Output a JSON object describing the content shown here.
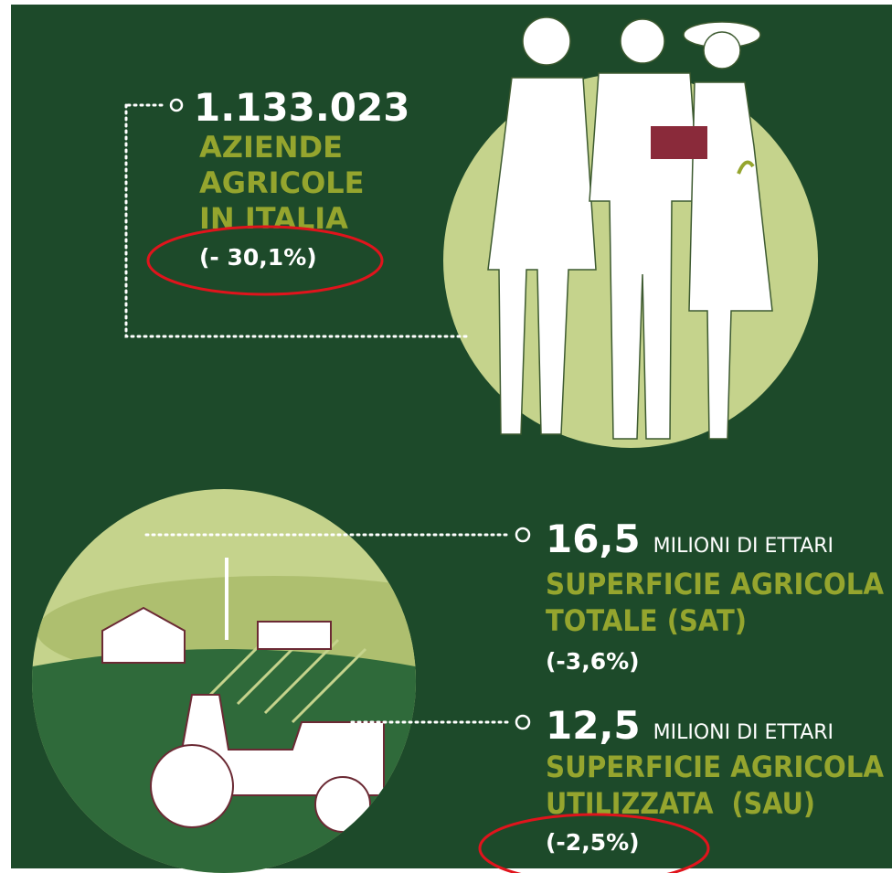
{
  "stats": [
    {
      "number": "1.133.023",
      "label_lines": [
        "AZIENDE",
        "AGRICOLE",
        "IN ITALIA"
      ],
      "change": "(- 30,1%)"
    },
    {
      "number": "16,5",
      "unit": "MILIONI DI ETTARI",
      "label_lines": [
        "SUPERFICIE AGRICOLA",
        "TOTALE (SAT)"
      ],
      "change": "(-3,6%)"
    },
    {
      "number": "12,5",
      "unit": "MILIONI DI ETTARI",
      "label_lines": [
        "SUPERFICIE AGRICOLA",
        "UTILIZZATA  (SAU)"
      ],
      "change": "(-2,5%)"
    }
  ]
}
